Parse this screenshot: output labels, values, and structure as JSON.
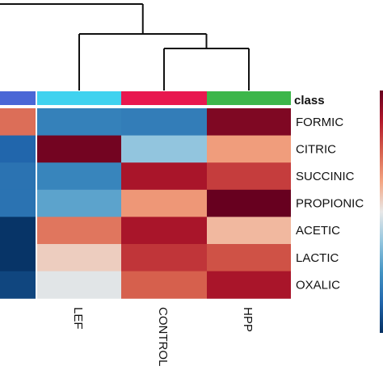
{
  "chart_data": {
    "type": "heatmap",
    "annotation_title": "class",
    "columns": [
      "",
      "LEF",
      "CONTROL",
      "HPP"
    ],
    "class_colors": [
      "#4a67d6",
      "#40d2ef",
      "#e8174f",
      "#3cb64a"
    ],
    "rows": [
      "FORMIC",
      "CITRIC",
      "SUCCINIC",
      "PROPIONIC",
      "ACETIC",
      "LACTIC",
      "OXALIC"
    ],
    "values": [
      [
        0.45,
        -0.6,
        -0.62,
        0.92
      ],
      [
        -0.75,
        0.96,
        -0.25,
        0.28
      ],
      [
        -0.68,
        -0.58,
        0.78,
        0.62
      ],
      [
        -0.68,
        -0.42,
        0.3,
        1.0
      ],
      [
        -0.98,
        0.42,
        0.78,
        0.18
      ],
      [
        -0.98,
        0.1,
        0.65,
        0.55
      ],
      [
        -0.9,
        -0.02,
        0.5,
        0.78
      ]
    ],
    "color_scale": "blue-white-red",
    "dendrogram": "columns: (LEF, (CONTROL, HPP))"
  }
}
